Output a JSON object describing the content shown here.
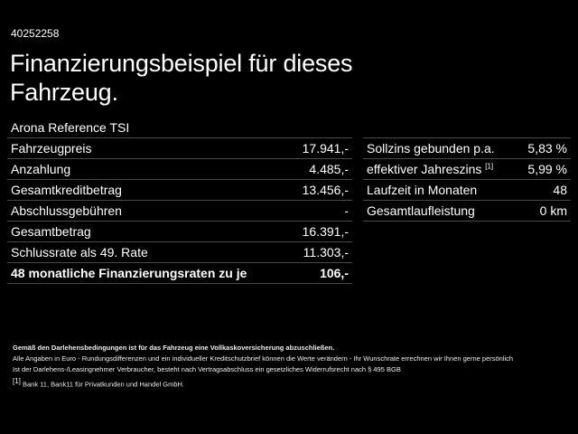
{
  "code": "40252258",
  "title": "Finanzierungsbeispiel für dieses Fahrzeug.",
  "model": "Arona Reference TSI",
  "left_rows": [
    {
      "label": "Fahrzeugpreis",
      "value": "17.941,-"
    },
    {
      "label": "Anzahlung",
      "value": "4.485,-"
    },
    {
      "label": "Gesamtkreditbetrag",
      "value": "13.456,-"
    },
    {
      "label": "Abschlussgebühren",
      "value": "-"
    },
    {
      "label": "Gesamtbetrag",
      "value": "16.391,-"
    },
    {
      "label": "Schlussrate als 49. Rate",
      "value": "11.303,-"
    },
    {
      "label": "48 monatliche Finanzierungsraten zu je",
      "value": "106,-"
    }
  ],
  "right_rows": [
    {
      "label": "Sollzins gebunden p.a.",
      "value": "5,83 %"
    },
    {
      "label": "effektiver Jahreszins",
      "sup": "[1]",
      "value": "5,99 %"
    },
    {
      "label": "Laufzeit in Monaten",
      "value": "48"
    },
    {
      "label": "Gesamtlaufleistung",
      "value": "0 km"
    }
  ],
  "notes": {
    "bold": "Gemäß den Darlehensbedingungen ist für das Fahrzeug eine Vollkaskoversicherung abzuschließen.",
    "line1": "Alle Angaben in Euro - Rundungsdifferenzen und ein individueller Kreditschutzbrief können die Werte verändern - Ihr Wunschrate errechnen wir Ihnen gerne persönlich",
    "line2": "Ist der Darlehens-/Leasingnehmer Verbraucher, besteht nach Vertragsabschluss ein gesetzliches Widerrufsrecht nach § 495 BGB",
    "footnote_mark": "[1]",
    "footnote": "Bank 11, Bank11 für Privatkunden und Handel GmbH."
  }
}
